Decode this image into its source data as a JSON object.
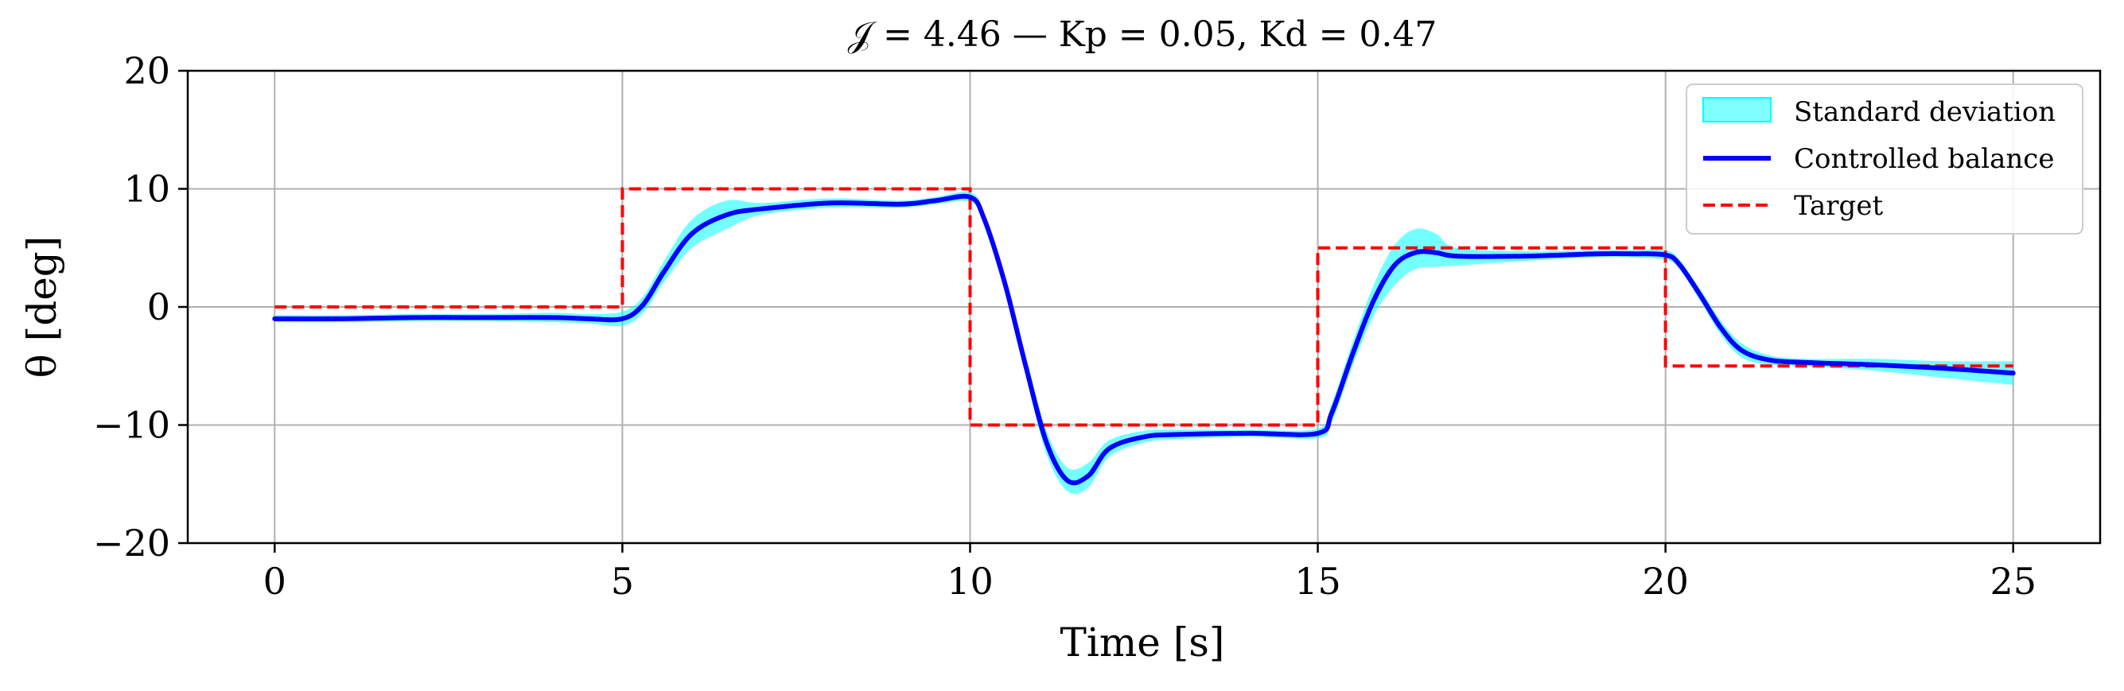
{
  "chart_data": {
    "type": "line",
    "title": "𝒥 = 4.46 — Kp = 0.05, Kd = 0.47",
    "xlabel": "Time [s]",
    "ylabel": "θ [deg]",
    "xlim": [
      -1.25,
      26.25
    ],
    "ylim": [
      -20,
      20
    ],
    "xticks": [
      0,
      5,
      10,
      15,
      20,
      25
    ],
    "yticks": [
      -20,
      -10,
      0,
      10,
      20
    ],
    "xtick_labels": [
      "0",
      "5",
      "10",
      "15",
      "20",
      "25"
    ],
    "ytick_labels": [
      "−20",
      "−10",
      "0",
      "10",
      "20"
    ],
    "grid": true,
    "legend_position": "top-right",
    "legend": {
      "band_label": "Standard deviation",
      "line_label": "Controlled balance",
      "target_label": "Target"
    },
    "colors": {
      "band": "#00ffff",
      "line": "#0000ff",
      "target": "#ff0000",
      "grid": "#b0b0b0"
    },
    "series": [
      {
        "name": "Controlled balance",
        "style": "solid",
        "x": [
          0,
          1,
          2,
          3,
          4,
          4.5,
          5,
          5.3,
          5.6,
          6.0,
          6.5,
          7,
          8,
          9,
          9.5,
          10,
          10.2,
          10.5,
          10.8,
          11.1,
          11.4,
          11.7,
          12.0,
          12.5,
          13,
          14,
          15,
          15.2,
          15.5,
          15.8,
          16.1,
          16.4,
          16.7,
          17,
          18,
          19,
          19.5,
          20,
          20.2,
          20.5,
          20.8,
          21.1,
          21.5,
          22,
          23,
          24,
          25
        ],
        "y": [
          -1.0,
          -1.0,
          -0.9,
          -0.9,
          -0.9,
          -1.0,
          -1.0,
          0.2,
          3.0,
          6.2,
          7.8,
          8.3,
          8.8,
          8.7,
          9.0,
          9.3,
          7.5,
          2.0,
          -5.0,
          -11.5,
          -14.7,
          -14.3,
          -12.0,
          -11.0,
          -10.8,
          -10.7,
          -10.7,
          -9.0,
          -4.0,
          0.5,
          3.5,
          4.6,
          4.6,
          4.3,
          4.3,
          4.5,
          4.5,
          4.4,
          3.6,
          1.0,
          -1.8,
          -3.7,
          -4.5,
          -4.7,
          -4.9,
          -5.2,
          -5.6
        ]
      },
      {
        "name": "Standard deviation",
        "style": "band",
        "x": [
          0,
          1,
          2,
          3,
          4,
          4.5,
          5,
          5.3,
          5.6,
          6.0,
          6.5,
          7,
          8,
          9,
          9.5,
          10,
          10.2,
          10.5,
          10.8,
          11.1,
          11.4,
          11.7,
          12.0,
          12.5,
          13,
          14,
          15,
          15.2,
          15.5,
          15.8,
          16.1,
          16.4,
          16.7,
          17,
          18,
          19,
          19.5,
          20,
          20.2,
          20.5,
          20.8,
          21.1,
          21.5,
          22,
          23,
          24,
          25
        ],
        "upper": [
          -0.7,
          -0.7,
          -0.6,
          -0.6,
          -0.5,
          -0.6,
          -0.4,
          0.9,
          3.9,
          7.4,
          9.0,
          8.8,
          9.2,
          9.0,
          9.3,
          9.7,
          8.0,
          2.6,
          -4.2,
          -10.5,
          -13.6,
          -13.2,
          -11.3,
          -10.5,
          -10.4,
          -10.4,
          -10.3,
          -8.2,
          -3.0,
          1.8,
          5.2,
          6.6,
          6.2,
          5.0,
          4.7,
          4.8,
          4.8,
          4.8,
          4.0,
          1.5,
          -1.2,
          -3.1,
          -4.1,
          -4.4,
          -4.4,
          -4.6,
          -4.6
        ],
        "lower": [
          -1.3,
          -1.3,
          -1.2,
          -1.2,
          -1.3,
          -1.4,
          -1.6,
          -0.5,
          2.1,
          5.0,
          6.6,
          7.8,
          8.4,
          8.4,
          8.7,
          8.9,
          7.0,
          1.4,
          -5.8,
          -12.5,
          -15.6,
          -15.3,
          -12.7,
          -11.5,
          -11.2,
          -11.0,
          -11.1,
          -9.8,
          -5.0,
          -0.8,
          1.8,
          3.2,
          3.4,
          3.5,
          3.9,
          4.2,
          4.2,
          4.0,
          3.2,
          0.5,
          -2.4,
          -4.3,
          -4.9,
          -5.0,
          -5.4,
          -6.0,
          -6.6
        ]
      },
      {
        "name": "Target",
        "style": "dashed",
        "x": [
          0,
          5,
          5,
          10,
          10,
          15,
          15,
          20,
          20,
          25
        ],
        "y": [
          0,
          0,
          10,
          10,
          -10,
          -10,
          5,
          5,
          -5,
          -5
        ]
      }
    ]
  }
}
